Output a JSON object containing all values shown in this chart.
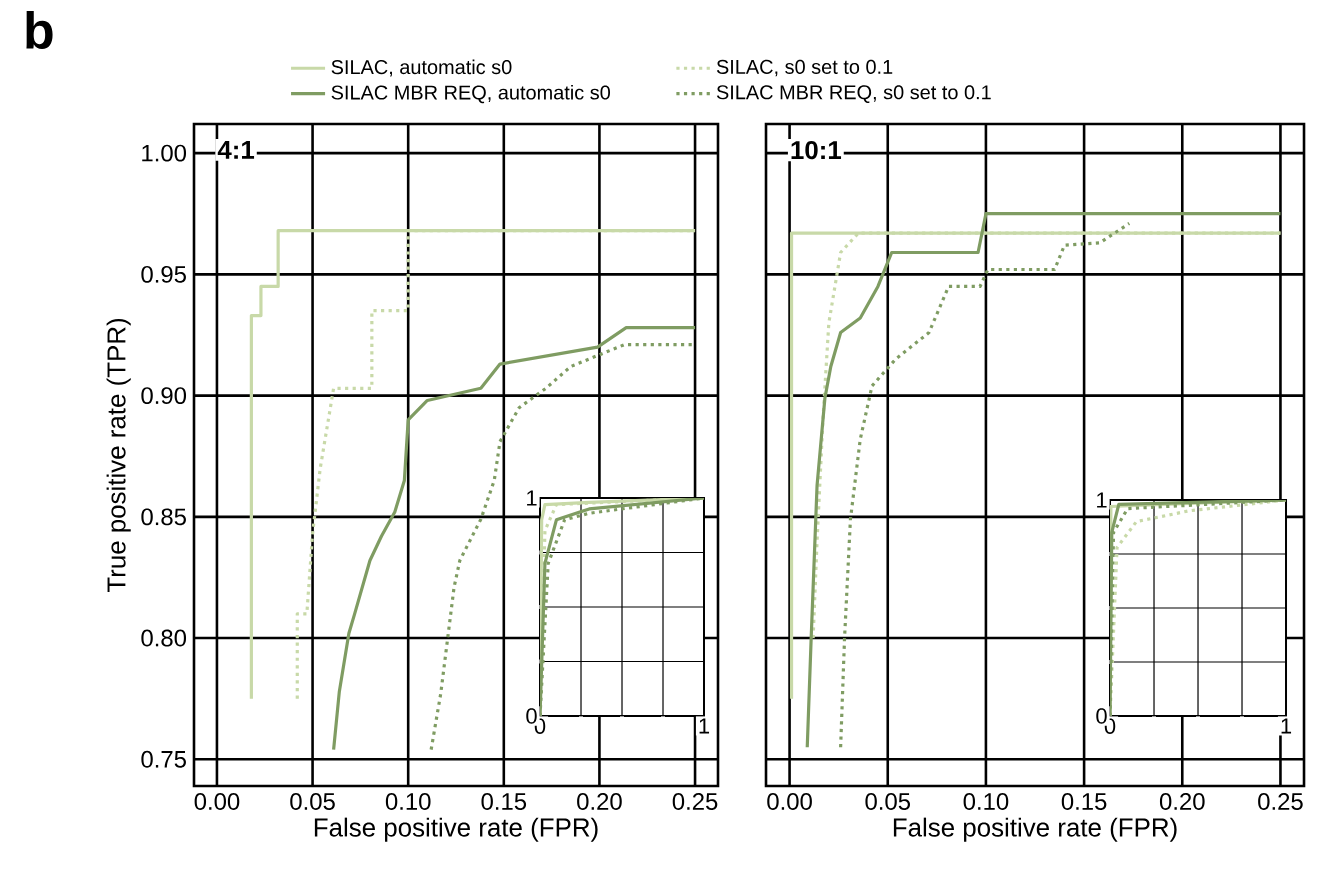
{
  "chart_data": [
    {
      "type": "line",
      "title": "4:1",
      "xlabel": "False positive rate (FPR)",
      "ylabel": "True positive rate (TPR)",
      "annotations": [
        "b"
      ],
      "xlim": [
        -0.012,
        0.262
      ],
      "ylim": [
        0.739,
        1.012
      ],
      "xticks": [
        {
          "value": 0,
          "label": "0.00"
        },
        0.05,
        {
          "value": 0.1,
          "label": "0.10"
        },
        0.15,
        {
          "value": 0.2,
          "label": "0.20"
        },
        0.25
      ],
      "yticks": [
        0.75,
        {
          "value": 0.8,
          "label": "0.80"
        },
        0.85,
        {
          "value": 0.9,
          "label": "0.90"
        },
        0.95,
        {
          "value": 1,
          "label": "1.00"
        }
      ],
      "grid": true,
      "legend": "top",
      "marker": "none",
      "series": [
        {
          "name": "SILAC, automatic s0",
          "color": "#c8d9a8",
          "line_style": "solid",
          "x": [
            0.018,
            0.018,
            0.023,
            0.023,
            0.032,
            0.032,
            0.25
          ],
          "values": [
            0.775,
            0.933,
            0.933,
            0.945,
            0.945,
            0.968,
            0.968
          ]
        },
        {
          "name": "SILAC, s0 set to 0.1",
          "color": "#c8d9a8",
          "line_style": "dotted",
          "x": [
            0.042,
            0.042,
            0.047,
            0.05,
            0.054,
            0.061,
            0.081,
            0.081,
            0.1,
            0.1,
            0.25
          ],
          "values": [
            0.775,
            0.81,
            0.81,
            0.843,
            0.87,
            0.903,
            0.903,
            0.935,
            0.935,
            0.968,
            0.968
          ]
        },
        {
          "name": "SILAC MBR REQ, automatic s0",
          "color": "#7f9c62",
          "line_style": "solid",
          "x": [
            0.061,
            0.064,
            0.069,
            0.072,
            0.08,
            0.086,
            0.093,
            0.098,
            0.1,
            0.11,
            0.138,
            0.148,
            0.199,
            0.214,
            0.25
          ],
          "values": [
            0.754,
            0.778,
            0.802,
            0.81,
            0.832,
            0.842,
            0.852,
            0.865,
            0.89,
            0.898,
            0.903,
            0.913,
            0.92,
            0.928,
            0.928
          ]
        },
        {
          "name": "SILAC MBR REQ, s0 set to 0.1",
          "color": "#7f9c62",
          "line_style": "dotted",
          "x": [
            0.112,
            0.117,
            0.124,
            0.127,
            0.138,
            0.145,
            0.148,
            0.158,
            0.172,
            0.185,
            0.213,
            0.25
          ],
          "values": [
            0.754,
            0.777,
            0.821,
            0.832,
            0.849,
            0.865,
            0.881,
            0.895,
            0.903,
            0.912,
            0.921,
            0.921
          ]
        }
      ]
    },
    {
      "type": "line",
      "xlim": [
        0,
        1
      ],
      "ylim": [
        0,
        1
      ],
      "xticks": [
        0,
        {
          "value": 0.25,
          "label": null
        },
        {
          "value": 0.5,
          "label": null
        },
        {
          "value": 0.75,
          "label": null
        },
        1
      ],
      "yticks": [
        0,
        {
          "value": 0.25,
          "label": null
        },
        {
          "value": 0.5,
          "label": null
        },
        {
          "value": 0.75,
          "label": null
        },
        1
      ],
      "grid": true,
      "marker": "none",
      "series": [
        {
          "color": "#c8d9a8",
          "line_style": "solid",
          "x": [
            0,
            0.01,
            0.03,
            0.3,
            1
          ],
          "values": [
            0,
            0.9,
            0.97,
            0.98,
            1
          ]
        },
        {
          "color": "#c8d9a8",
          "line_style": "dotted",
          "x": [
            0,
            0.03,
            0.1,
            0.4,
            1
          ],
          "values": [
            0,
            0.85,
            0.97,
            0.98,
            1
          ]
        },
        {
          "color": "#7f9c62",
          "line_style": "solid",
          "x": [
            0,
            0.03,
            0.1,
            0.3,
            1
          ],
          "values": [
            0,
            0.7,
            0.9,
            0.95,
            1
          ]
        },
        {
          "color": "#7f9c62",
          "line_style": "dotted",
          "x": [
            0,
            0.05,
            0.15,
            0.3,
            1
          ],
          "values": [
            0,
            0.7,
            0.9,
            0.93,
            1
          ]
        }
      ]
    },
    {
      "type": "line",
      "title": "10:1",
      "xlabel": "False positive rate (FPR)",
      "tick_labels": "x",
      "xlim": [
        -0.012,
        0.262
      ],
      "ylim": [
        0.739,
        1.012
      ],
      "xticks": [
        {
          "value": 0,
          "label": "0.00"
        },
        0.05,
        {
          "value": 0.1,
          "label": "0.10"
        },
        0.15,
        {
          "value": 0.2,
          "label": "0.20"
        },
        0.25
      ],
      "yticks": [
        0.75,
        0.8,
        0.85,
        0.9,
        0.95,
        1
      ],
      "grid": true,
      "marker": "none",
      "series": [
        {
          "color": "#c8d9a8",
          "line_style": "solid",
          "x": [
            0.001,
            0.001,
            0.25
          ],
          "values": [
            0.775,
            0.967,
            0.967
          ]
        },
        {
          "color": "#c8d9a8",
          "line_style": "dotted",
          "x": [
            0.012,
            0.014,
            0.017,
            0.02,
            0.026,
            0.035,
            0.25
          ],
          "values": [
            0.8,
            0.84,
            0.89,
            0.93,
            0.959,
            0.967,
            0.967
          ]
        },
        {
          "color": "#7f9c62",
          "line_style": "solid",
          "x": [
            0.009,
            0.011,
            0.014,
            0.018,
            0.021,
            0.026,
            0.036,
            0.045,
            0.052,
            0.096,
            0.1,
            0.25
          ],
          "values": [
            0.755,
            0.8,
            0.863,
            0.899,
            0.912,
            0.926,
            0.932,
            0.945,
            0.959,
            0.959,
            0.975,
            0.975
          ]
        },
        {
          "color": "#7f9c62",
          "line_style": "dotted",
          "x": [
            0.026,
            0.028,
            0.031,
            0.036,
            0.042,
            0.054,
            0.071,
            0.081,
            0.097,
            0.101,
            0.135,
            0.14,
            0.158,
            0.173
          ],
          "values": [
            0.755,
            0.8,
            0.849,
            0.882,
            0.904,
            0.915,
            0.926,
            0.945,
            0.945,
            0.952,
            0.952,
            0.962,
            0.963,
            0.971
          ]
        }
      ]
    },
    {
      "type": "line",
      "xlim": [
        0,
        1
      ],
      "ylim": [
        0,
        1
      ],
      "xticks": [
        0,
        {
          "value": 0.25,
          "label": null
        },
        {
          "value": 0.5,
          "label": null
        },
        {
          "value": 0.75,
          "label": null
        },
        1
      ],
      "yticks": [
        0,
        {
          "value": 0.25,
          "label": null
        },
        {
          "value": 0.5,
          "label": null
        },
        {
          "value": 0.75,
          "label": null
        },
        1
      ],
      "grid": true,
      "marker": "none",
      "series": [
        {
          "color": "#c8d9a8",
          "line_style": "solid",
          "x": [
            0,
            0.005,
            0.3,
            1
          ],
          "values": [
            0,
            0.97,
            0.98,
            1
          ]
        },
        {
          "color": "#c8d9a8",
          "line_style": "dotted",
          "x": [
            0,
            0.04,
            0.15,
            0.45,
            1
          ],
          "values": [
            0,
            0.78,
            0.9,
            0.95,
            1
          ]
        },
        {
          "color": "#7f9c62",
          "line_style": "solid",
          "x": [
            0,
            0.01,
            0.05,
            1
          ],
          "values": [
            0,
            0.85,
            0.98,
            1
          ]
        },
        {
          "color": "#7f9c62",
          "line_style": "dotted",
          "x": [
            0,
            0.02,
            0.1,
            1
          ],
          "values": [
            0,
            0.85,
            0.96,
            1
          ]
        }
      ]
    }
  ]
}
